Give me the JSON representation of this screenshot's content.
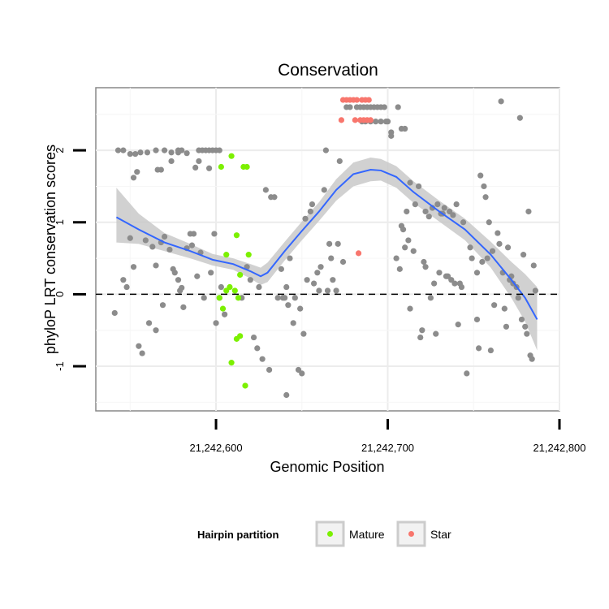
{
  "chart_data": {
    "type": "scatter",
    "title": "Conservation",
    "xlabel": "Genomic Position",
    "ylabel": "phyloP LRT conservation scores",
    "xlim": [
      21242530,
      21242800
    ],
    "ylim": [
      -1.62,
      2.87
    ],
    "x_ticks": [
      21242600,
      21242700,
      21242800
    ],
    "x_tick_labels": [
      "21,242,600",
      "21,242,700",
      "21,242,800"
    ],
    "y_ticks": [
      -1,
      0,
      1,
      2
    ],
    "y_tick_labels": [
      "-1",
      "0",
      "1",
      "2"
    ],
    "reference_line": {
      "y": 0,
      "style": "dashed"
    },
    "colors": {
      "other": "#8c8c8c",
      "mature": "#7cf000",
      "star": "#f8766d",
      "smooth": "#3366ff",
      "band": "#c9c9c9"
    },
    "legend": {
      "title": "Hairpin partition",
      "position": "bottom",
      "entries": [
        {
          "label": "Mature",
          "color": "#7cf000"
        },
        {
          "label": "Star",
          "color": "#f8766d"
        }
      ]
    },
    "series": [
      {
        "name": "Other",
        "points": [
          [
            21242543,
            2.0
          ],
          [
            21242546,
            2.0
          ],
          [
            21242550,
            1.95
          ],
          [
            21242553,
            1.95
          ],
          [
            21242556,
            1.97
          ],
          [
            21242560,
            1.97
          ],
          [
            21242565,
            2.0
          ],
          [
            21242570,
            2.0
          ],
          [
            21242574,
            1.97
          ],
          [
            21242578,
            1.97
          ],
          [
            21242580,
            2.0
          ],
          [
            21242583,
            1.96
          ],
          [
            21242578,
            2.0
          ],
          [
            21242590,
            2.0
          ],
          [
            21242592,
            2.0
          ],
          [
            21242594,
            2.0
          ],
          [
            21242596,
            2.0
          ],
          [
            21242598,
            2.0
          ],
          [
            21242600,
            2.0
          ],
          [
            21242602,
            2.0
          ],
          [
            21242590,
            1.85
          ],
          [
            21242596,
            1.75
          ],
          [
            21242588,
            1.76
          ],
          [
            21242574,
            1.85
          ],
          [
            21242568,
            1.73
          ],
          [
            21242566,
            1.73
          ],
          [
            21242552,
            1.62
          ],
          [
            21242554,
            1.7
          ],
          [
            21242541,
            -0.26
          ],
          [
            21242546,
            0.2
          ],
          [
            21242548,
            0.1
          ],
          [
            21242550,
            0.78
          ],
          [
            21242552,
            0.38
          ],
          [
            21242555,
            -0.72
          ],
          [
            21242557,
            -0.82
          ],
          [
            21242559,
            0.75
          ],
          [
            21242561,
            -0.4
          ],
          [
            21242563,
            0.66
          ],
          [
            21242565,
            0.4
          ],
          [
            21242565,
            -0.5
          ],
          [
            21242568,
            0.72
          ],
          [
            21242569,
            -0.15
          ],
          [
            21242570,
            0.8
          ],
          [
            21242573,
            0.62
          ],
          [
            21242575,
            0.35
          ],
          [
            21242576,
            0.3
          ],
          [
            21242578,
            0.2
          ],
          [
            21242579,
            0.05
          ],
          [
            21242580,
            0.09
          ],
          [
            21242581,
            -0.18
          ],
          [
            21242583,
            0.64
          ],
          [
            21242585,
            0.84
          ],
          [
            21242586,
            0.68
          ],
          [
            21242587,
            0.84
          ],
          [
            21242589,
            0.25
          ],
          [
            21242591,
            0.58
          ],
          [
            21242593,
            -0.05
          ],
          [
            21242597,
            0.3
          ],
          [
            21242599,
            0.84
          ],
          [
            21242600,
            -0.4
          ],
          [
            21242602,
            -0.05
          ],
          [
            21242605,
            -0.28
          ],
          [
            21242603,
            0.1
          ],
          [
            21242615,
            -0.05
          ],
          [
            21242618,
            0.38
          ],
          [
            21242620,
            0.2
          ],
          [
            21242622,
            -0.6
          ],
          [
            21242624,
            -0.75
          ],
          [
            21242625,
            0.1
          ],
          [
            21242627,
            -0.9
          ],
          [
            21242629,
            1.45
          ],
          [
            21242631,
            -1.05
          ],
          [
            21242632,
            1.35
          ],
          [
            21242634,
            1.35
          ],
          [
            21242636,
            -0.05
          ],
          [
            21242638,
            0.35
          ],
          [
            21242639,
            -0.05
          ],
          [
            21242640,
            -0.05
          ],
          [
            21242641,
            0.1
          ],
          [
            21242641,
            -1.4
          ],
          [
            21242642,
            -0.15
          ],
          [
            21242643,
            0.5
          ],
          [
            21242645,
            -0.4
          ],
          [
            21242646,
            -0.05
          ],
          [
            21242648,
            -1.05
          ],
          [
            21242649,
            -0.2
          ],
          [
            21242650,
            -1.1
          ],
          [
            21242651,
            -0.55
          ],
          [
            21242652,
            1.05
          ],
          [
            21242653,
            0.2
          ],
          [
            21242655,
            1.15
          ],
          [
            21242656,
            1.25
          ],
          [
            21242657,
            0.15
          ],
          [
            21242659,
            0.3
          ],
          [
            21242660,
            0.05
          ],
          [
            21242661,
            0.38
          ],
          [
            21242663,
            1.45
          ],
          [
            21242664,
            2.0
          ],
          [
            21242665,
            0.05
          ],
          [
            21242666,
            0.7
          ],
          [
            21242667,
            0.5
          ],
          [
            21242668,
            0.2
          ],
          [
            21242670,
            0.05
          ],
          [
            21242671,
            0.7
          ],
          [
            21242672,
            1.85
          ],
          [
            21242674,
            0.45
          ],
          [
            21242676,
            2.6
          ],
          [
            21242678,
            2.6
          ],
          [
            21242682,
            2.6
          ],
          [
            21242684,
            2.6
          ],
          [
            21242686,
            2.6
          ],
          [
            21242688,
            2.6
          ],
          [
            21242690,
            2.6
          ],
          [
            21242692,
            2.6
          ],
          [
            21242694,
            2.6
          ],
          [
            21242696,
            2.6
          ],
          [
            21242698,
            2.6
          ],
          [
            21242685,
            2.4
          ],
          [
            21242687,
            2.4
          ],
          [
            21242690,
            2.4
          ],
          [
            21242693,
            2.4
          ],
          [
            21242696,
            2.4
          ],
          [
            21242699,
            2.4
          ],
          [
            21242700,
            2.4
          ],
          [
            21242702,
            2.25
          ],
          [
            21242708,
            2.3
          ],
          [
            21242710,
            2.3
          ],
          [
            21242706,
            2.6
          ],
          [
            21242702,
            2.2
          ],
          [
            21242705,
            0.5
          ],
          [
            21242707,
            0.35
          ],
          [
            21242708,
            0.95
          ],
          [
            21242709,
            0.9
          ],
          [
            21242710,
            0.65
          ],
          [
            21242711,
            1.15
          ],
          [
            21242712,
            0.75
          ],
          [
            21242713,
            1.55
          ],
          [
            21242713,
            -0.2
          ],
          [
            21242715,
            0.6
          ],
          [
            21242716,
            1.25
          ],
          [
            21242718,
            1.5
          ],
          [
            21242719,
            -0.6
          ],
          [
            21242720,
            -0.5
          ],
          [
            21242721,
            0.45
          ],
          [
            21242722,
            1.15
          ],
          [
            21242722,
            0.38
          ],
          [
            21242724,
            1.08
          ],
          [
            21242725,
            -0.05
          ],
          [
            21242726,
            1.2
          ],
          [
            21242727,
            0.15
          ],
          [
            21242728,
            -0.55
          ],
          [
            21242729,
            1.25
          ],
          [
            21242730,
            0.3
          ],
          [
            21242731,
            1.12
          ],
          [
            21242732,
            1.12
          ],
          [
            21242733,
            1.2
          ],
          [
            21242734,
            0.25
          ],
          [
            21242735,
            0.25
          ],
          [
            21242736,
            1.15
          ],
          [
            21242737,
            0.2
          ],
          [
            21242738,
            1.1
          ],
          [
            21242739,
            0.15
          ],
          [
            21242740,
            1.25
          ],
          [
            21242741,
            -0.42
          ],
          [
            21242742,
            0.15
          ],
          [
            21242743,
            0.1
          ],
          [
            21242744,
            1.0
          ],
          [
            21242746,
            -1.1
          ],
          [
            21242748,
            0.65
          ],
          [
            21242749,
            0.5
          ],
          [
            21242752,
            -0.35
          ],
          [
            21242752,
            0.3
          ],
          [
            21242753,
            -0.75
          ],
          [
            21242754,
            1.65
          ],
          [
            21242755,
            0.45
          ],
          [
            21242756,
            1.5
          ],
          [
            21242757,
            1.35
          ],
          [
            21242758,
            0.5
          ],
          [
            21242759,
            1.0
          ],
          [
            21242760,
            -0.78
          ],
          [
            21242761,
            0.6
          ],
          [
            21242762,
            -0.15
          ],
          [
            21242764,
            0.85
          ],
          [
            21242765,
            0.7
          ],
          [
            21242766,
            2.68
          ],
          [
            21242767,
            0.3
          ],
          [
            21242768,
            -0.2
          ],
          [
            21242769,
            -0.45
          ],
          [
            21242770,
            0.65
          ],
          [
            21242771,
            0.2
          ],
          [
            21242772,
            0.25
          ],
          [
            21242773,
            0.15
          ],
          [
            21242775,
            0.1
          ],
          [
            21242776,
            -0.05
          ],
          [
            21242777,
            2.45
          ],
          [
            21242778,
            -0.35
          ],
          [
            21242779,
            0.55
          ],
          [
            21242780,
            -0.45
          ],
          [
            21242781,
            -0.55
          ],
          [
            21242782,
            1.15
          ],
          [
            21242783,
            -0.85
          ],
          [
            21242784,
            -0.9
          ],
          [
            21242785,
            0.4
          ],
          [
            21242786,
            0.05
          ]
        ]
      },
      {
        "name": "Mature",
        "points": [
          [
            21242609,
            1.92
          ],
          [
            21242603,
            1.77
          ],
          [
            21242612,
            0.82
          ],
          [
            21242606,
            0.55
          ],
          [
            21242608,
            0.1
          ],
          [
            21242611,
            0.05
          ],
          [
            21242614,
            0.27
          ],
          [
            21242616,
            1.77
          ],
          [
            21242618,
            1.77
          ],
          [
            21242619,
            0.55
          ],
          [
            21242613,
            -0.05
          ],
          [
            21242602,
            -0.05
          ],
          [
            21242604,
            -0.2
          ],
          [
            21242606,
            0.05
          ],
          [
            21242614,
            -0.58
          ],
          [
            21242612,
            -0.62
          ],
          [
            21242609,
            -0.95
          ],
          [
            21242617,
            -1.27
          ]
        ]
      },
      {
        "name": "Star",
        "points": [
          [
            21242674,
            2.7
          ],
          [
            21242676,
            2.7
          ],
          [
            21242678,
            2.7
          ],
          [
            21242680,
            2.7
          ],
          [
            21242682,
            2.7
          ],
          [
            21242685,
            2.7
          ],
          [
            21242687,
            2.7
          ],
          [
            21242689,
            2.7
          ],
          [
            21242673,
            2.42
          ],
          [
            21242681,
            2.42
          ],
          [
            21242684,
            2.42
          ],
          [
            21242686,
            2.42
          ],
          [
            21242688,
            2.42
          ],
          [
            21242690,
            2.42
          ],
          [
            21242683,
            0.57
          ]
        ]
      }
    ],
    "smooth": {
      "x": [
        21242542,
        21242555,
        21242570,
        21242585,
        21242598,
        21242610,
        21242620,
        21242626,
        21242630,
        21242640,
        21242650,
        21242660,
        21242670,
        21242680,
        21242690,
        21242696,
        21242705,
        21242715,
        21242730,
        21242745,
        21242760,
        21242772,
        21242780,
        21242787
      ],
      "y": [
        1.07,
        0.9,
        0.72,
        0.6,
        0.48,
        0.42,
        0.32,
        0.25,
        0.3,
        0.6,
        0.88,
        1.15,
        1.45,
        1.67,
        1.73,
        1.72,
        1.63,
        1.42,
        1.15,
        0.9,
        0.55,
        0.2,
        -0.05,
        -0.35
      ],
      "lower": [
        0.72,
        0.7,
        0.6,
        0.5,
        0.4,
        0.34,
        0.22,
        0.13,
        0.17,
        0.47,
        0.75,
        1.02,
        1.3,
        1.5,
        1.57,
        1.58,
        1.48,
        1.27,
        1.01,
        0.75,
        0.37,
        -0.05,
        -0.38,
        -0.78
      ],
      "upper": [
        1.48,
        1.12,
        0.85,
        0.7,
        0.56,
        0.5,
        0.42,
        0.37,
        0.44,
        0.73,
        1.01,
        1.28,
        1.6,
        1.83,
        1.9,
        1.88,
        1.78,
        1.57,
        1.3,
        1.05,
        0.73,
        0.45,
        0.28,
        0.1
      ]
    }
  }
}
